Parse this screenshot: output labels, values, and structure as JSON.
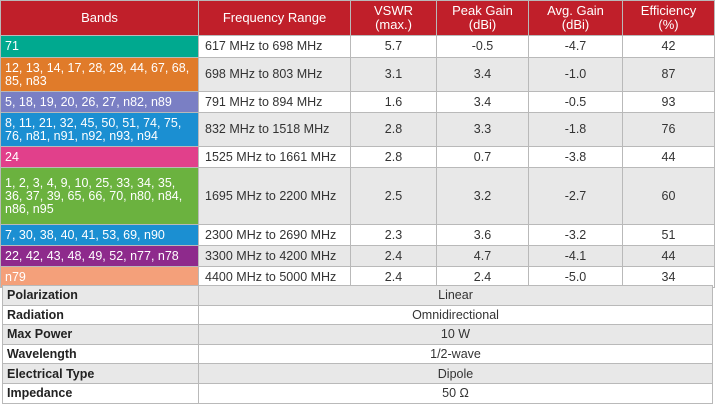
{
  "headers": [
    "Bands",
    "Frequency Range",
    "VSWR\n(max.)",
    "Peak Gain\n(dBi)",
    "Avg. Gain\n(dBi)",
    "Efficiency\n(%)"
  ],
  "rows": [
    {
      "bands": "71",
      "color": "#00a98f",
      "freq": "617 MHz to 698 MHz",
      "vswr": "5.7",
      "peak": "-0.5",
      "avg": "-4.7",
      "eff": "42"
    },
    {
      "bands": "12, 13, 14, 17, 28, 29, 44, 67, 68, 85, n83",
      "color": "#e07b2a",
      "freq": "698 MHz to 803 MHz",
      "vswr": "3.1",
      "peak": "3.4",
      "avg": "-1.0",
      "eff": "87"
    },
    {
      "bands": "5, 18, 19, 20, 26, 27, n82, n89",
      "color": "#7a7fc4",
      "freq": "791 MHz to 894 MHz",
      "vswr": "1.6",
      "peak": "3.4",
      "avg": "-0.5",
      "eff": "93"
    },
    {
      "bands": "8, 11, 21, 32, 45, 50, 51, 74, 75, 76, n81, n91, n92, n93, n94",
      "color": "#1b8fd2",
      "freq": "832 MHz to 1518 MHz",
      "vswr": "2.8",
      "peak": "3.3",
      "avg": "-1.8",
      "eff": "76"
    },
    {
      "bands": "24",
      "color": "#e1408b",
      "freq": "1525 MHz to 1661 MHz",
      "vswr": "2.8",
      "peak": "0.7",
      "avg": "-3.8",
      "eff": "44"
    },
    {
      "bands": "1, 2, 3, 4, 9, 10, 25, 33, 34, 35, 36, 37, 39, 65, 66, 70, n80, n84, n86, n95",
      "color": "#6bb23f",
      "freq": "1695 MHz to 2200 MHz",
      "vswr": "2.5",
      "peak": "3.2",
      "avg": "-2.7",
      "eff": "60"
    },
    {
      "bands": "7, 30, 38, 40, 41, 53, 69, n90",
      "color": "#1b8fd2",
      "freq": "2300 MHz to 2690 MHz",
      "vswr": "2.3",
      "peak": "3.6",
      "avg": "-3.2",
      "eff": "51"
    },
    {
      "bands": "22, 42, 43, 48, 49, 52, n77, n78",
      "color": "#8e2a8c",
      "freq": "3300 MHz to 4200 MHz",
      "vswr": "2.4",
      "peak": "4.7",
      "avg": "-4.1",
      "eff": "44"
    },
    {
      "bands": "n79",
      "color": "#f4a07a",
      "freq": "4400 MHz to 5000 MHz",
      "vswr": "2.4",
      "peak": "2.4",
      "avg": "-5.0",
      "eff": "34"
    }
  ],
  "specs": [
    {
      "label": "Polarization",
      "value": "Linear"
    },
    {
      "label": "Radiation",
      "value": "Omnidirectional"
    },
    {
      "label": "Max Power",
      "value": "10 W"
    },
    {
      "label": "Wavelength",
      "value": "1/2-wave"
    },
    {
      "label": "Electrical Type",
      "value": "Dipole"
    },
    {
      "label": "Impedance",
      "value": "50 Ω"
    }
  ],
  "colors": {
    "header": "#c01f2a",
    "alt_row": "#e8e8e8"
  }
}
